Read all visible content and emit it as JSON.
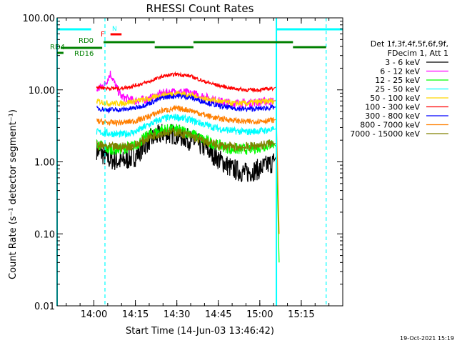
{
  "chart_data": {
    "type": "line",
    "title": "RHESSI Count Rates",
    "xlabel": "Start Time (14-Jun-03 13:46:42)",
    "ylabel": "Count Rate (s⁻¹ detector segment⁻¹)",
    "yscale": "log",
    "ylim": [
      0.01,
      100
    ],
    "xlim": [
      "13:46:42",
      "15:30:00"
    ],
    "xticks": [
      "14:00",
      "14:15",
      "14:30",
      "14:45",
      "15:00",
      "15:15"
    ],
    "yticks": [
      "0.01",
      "0.10",
      "1.00",
      "10.00",
      "100.00"
    ],
    "legend_title_lines": [
      "Det 1f,3f,4f,5f,6f,9f,",
      "FDecim 1, Att 1"
    ],
    "legend_position": "right",
    "timestamp": "19-Oct-2021 15:19",
    "series": [
      {
        "name": "3 - 6 keV",
        "color": "#000000",
        "x": [
          "14:01",
          "14:05",
          "14:10",
          "14:15",
          "14:20",
          "14:25",
          "14:30",
          "14:35",
          "14:40",
          "14:45",
          "14:50",
          "14:55",
          "15:00",
          "15:05",
          "15:06"
        ],
        "y": [
          1.5,
          1.1,
          1.0,
          1.2,
          2.0,
          2.5,
          2.4,
          2.0,
          1.6,
          1.1,
          0.8,
          0.7,
          0.8,
          1.0,
          1.2
        ]
      },
      {
        "name": "6 - 12 keV",
        "color": "#ff00ff",
        "x": [
          "14:01",
          "14:04",
          "14:06",
          "14:08",
          "14:10",
          "14:15",
          "14:20",
          "14:25",
          "14:30",
          "14:35",
          "14:40",
          "14:45",
          "14:50",
          "14:55",
          "15:00",
          "15:05",
          "15:06"
        ],
        "y": [
          10.0,
          12.0,
          17.0,
          11.0,
          8.0,
          7.0,
          7.5,
          9.0,
          9.5,
          9.0,
          8.0,
          7.0,
          6.5,
          6.5,
          6.8,
          7.0,
          7.2
        ]
      },
      {
        "name": "12 - 25 keV",
        "color": "#00ff00",
        "x": [
          "14:01",
          "14:05",
          "14:10",
          "14:15",
          "14:20",
          "14:25",
          "14:30",
          "14:35",
          "14:40",
          "14:45",
          "14:50",
          "14:55",
          "15:00",
          "15:05",
          "15:06",
          "15:07"
        ],
        "y": [
          1.8,
          1.5,
          1.5,
          1.7,
          2.4,
          2.8,
          2.8,
          2.5,
          2.0,
          1.7,
          1.5,
          1.5,
          1.6,
          1.8,
          1.6,
          0.04
        ]
      },
      {
        "name": "25 - 50 keV",
        "color": "#00ffff",
        "x": [
          "14:01",
          "14:05",
          "14:10",
          "14:15",
          "14:20",
          "14:25",
          "14:30",
          "14:35",
          "14:40",
          "14:45",
          "14:50",
          "14:55",
          "15:00",
          "15:05",
          "15:06"
        ],
        "y": [
          2.6,
          2.5,
          2.4,
          2.6,
          3.3,
          4.0,
          4.2,
          3.8,
          3.3,
          2.9,
          2.7,
          2.6,
          2.7,
          2.8,
          2.9
        ]
      },
      {
        "name": "50 - 100 keV",
        "color": "#ffd700",
        "x": [
          "14:01",
          "14:05",
          "14:10",
          "14:15",
          "14:20",
          "14:25",
          "14:30",
          "14:35",
          "14:40",
          "14:45",
          "14:50",
          "14:55",
          "15:00",
          "15:05",
          "15:06"
        ],
        "y": [
          7.0,
          6.5,
          6.5,
          7.0,
          7.5,
          8.5,
          9.0,
          8.5,
          7.5,
          7.0,
          6.5,
          6.5,
          6.8,
          7.0,
          7.0
        ]
      },
      {
        "name": "100 - 300 keV",
        "color": "#ff0000",
        "x": [
          "14:01",
          "14:05",
          "14:10",
          "14:15",
          "14:20",
          "14:25",
          "14:30",
          "14:35",
          "14:40",
          "14:45",
          "14:50",
          "14:55",
          "15:00",
          "15:05",
          "15:06"
        ],
        "y": [
          11.0,
          10.5,
          10.5,
          11.5,
          13.0,
          15.5,
          16.5,
          15.5,
          13.0,
          11.5,
          10.5,
          10.0,
          10.0,
          10.5,
          11.0
        ]
      },
      {
        "name": "300 - 800 keV",
        "color": "#0000ff",
        "x": [
          "14:01",
          "14:05",
          "14:10",
          "14:15",
          "14:20",
          "14:25",
          "14:30",
          "14:35",
          "14:40",
          "14:45",
          "14:50",
          "14:55",
          "15:00",
          "15:05",
          "15:06"
        ],
        "y": [
          5.5,
          5.3,
          5.3,
          5.6,
          6.5,
          7.8,
          8.3,
          7.8,
          6.8,
          6.0,
          5.6,
          5.4,
          5.5,
          5.7,
          5.8
        ]
      },
      {
        "name": "800 - 7000 keV",
        "color": "#ff7f00",
        "x": [
          "14:01",
          "14:05",
          "14:10",
          "14:15",
          "14:20",
          "14:25",
          "14:30",
          "14:35",
          "14:40",
          "14:45",
          "14:50",
          "14:55",
          "15:00",
          "15:05",
          "15:06",
          "15:07"
        ],
        "y": [
          3.7,
          3.5,
          3.5,
          3.7,
          4.3,
          5.2,
          5.5,
          5.2,
          4.5,
          4.0,
          3.8,
          3.6,
          3.7,
          3.8,
          3.9,
          0.1
        ]
      },
      {
        "name": "7000 - 15000 keV",
        "color": "#808000",
        "x": [
          "14:01",
          "14:05",
          "14:10",
          "14:15",
          "14:20",
          "14:25",
          "14:30",
          "14:35",
          "14:40",
          "14:45",
          "14:50",
          "14:55",
          "15:00",
          "15:05",
          "15:06"
        ],
        "y": [
          1.7,
          1.6,
          1.6,
          1.7,
          2.2,
          2.6,
          2.6,
          2.3,
          1.9,
          1.7,
          1.6,
          1.6,
          1.7,
          1.8,
          1.8
        ]
      }
    ],
    "state_bars": {
      "night": [
        [
          "13:46:42",
          "13:59:00"
        ],
        [
          "15:06:00",
          "15:30:00"
        ]
      ],
      "saa_markers": [
        "13:46:42",
        "14:04:00",
        "15:06:00",
        "15:24:00"
      ],
      "decimation": [
        {
          "label": "RD0",
          "segments": [
            [
              "14:03:30",
              "14:22:00"
            ],
            [
              "14:22:00",
              "14:36:00"
            ],
            [
              "14:36:00",
              "15:12:00"
            ],
            [
              "15:12:00",
              "15:24:00"
            ]
          ]
        },
        {
          "label": "RD4",
          "segments": [
            [
              "13:48:00",
              "14:03:00"
            ]
          ]
        },
        {
          "label": "RD16",
          "segments": [
            [
              "13:46:42",
              "13:49:00"
            ]
          ]
        }
      ],
      "flags": [
        {
          "label": "F",
          "range": [
            "14:06:00",
            "14:10:00"
          ]
        },
        {
          "label": "N",
          "range": [
            "14:05:30",
            "14:06:30"
          ]
        }
      ]
    }
  }
}
